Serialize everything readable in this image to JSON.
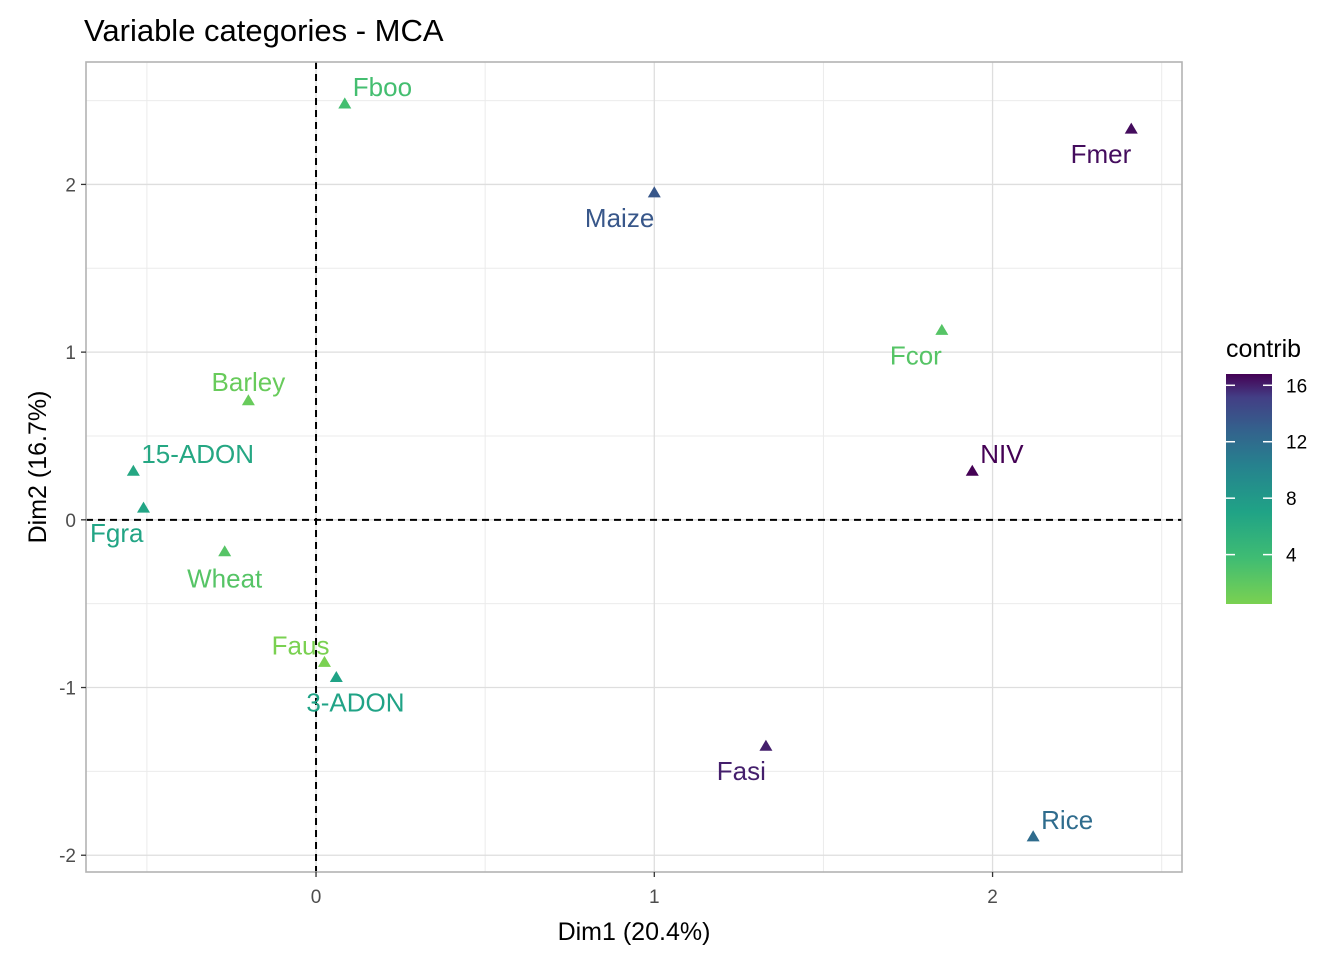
{
  "chart_data": {
    "type": "scatter",
    "title": "Variable categories - MCA",
    "xlabel": "Dim1 (20.4%)",
    "ylabel": "Dim2 (16.7%)",
    "xlim": [
      -0.68,
      2.56
    ],
    "ylim": [
      -2.1,
      2.73
    ],
    "xticks": [
      0,
      1,
      2
    ],
    "yticks": [
      -2,
      -1,
      0,
      1,
      2
    ],
    "grid": true,
    "reference_lines": {
      "x": 0,
      "y": 0,
      "style": "dashed"
    },
    "legend": {
      "title": "contrib",
      "placement": "right",
      "type": "colorbar",
      "range": [
        0.5,
        16.8
      ],
      "ticks": [
        4,
        8,
        12,
        16
      ]
    },
    "points": [
      {
        "label": "Fboo",
        "x": 0.085,
        "y": 2.48,
        "contrib": 3.5,
        "label_pos": "above-right"
      },
      {
        "label": "Fmer",
        "x": 2.41,
        "y": 2.33,
        "contrib": 16.5,
        "label_pos": "below-left"
      },
      {
        "label": "Maize",
        "x": 1.0,
        "y": 1.95,
        "contrib": 13.5,
        "label_pos": "below-left"
      },
      {
        "label": "Fcor",
        "x": 1.85,
        "y": 1.13,
        "contrib": 2.5,
        "label_pos": "below-left"
      },
      {
        "label": "Barley",
        "x": -0.2,
        "y": 0.71,
        "contrib": 1.5,
        "label_pos": "above"
      },
      {
        "label": "NIV",
        "x": 1.94,
        "y": 0.29,
        "contrib": 16.8,
        "label_pos": "above-right"
      },
      {
        "label": "15-ADON",
        "x": -0.54,
        "y": 0.29,
        "contrib": 6.5,
        "label_pos": "above-right"
      },
      {
        "label": "Fgra",
        "x": -0.51,
        "y": 0.07,
        "contrib": 6.8,
        "label_pos": "below-left"
      },
      {
        "label": "Wheat",
        "x": -0.27,
        "y": -0.19,
        "contrib": 2.5,
        "label_pos": "below"
      },
      {
        "label": "Faus",
        "x": 0.025,
        "y": -0.85,
        "contrib": 0.5,
        "label_pos": "above-left"
      },
      {
        "label": "3-ADON",
        "x": 0.06,
        "y": -0.94,
        "contrib": 7.0,
        "label_pos": "below-right"
      },
      {
        "label": "Fasi",
        "x": 1.33,
        "y": -1.35,
        "contrib": 16.0,
        "label_pos": "below-left"
      },
      {
        "label": "Rice",
        "x": 2.12,
        "y": -1.89,
        "contrib": 12.0,
        "label_pos": "above-right"
      }
    ]
  }
}
